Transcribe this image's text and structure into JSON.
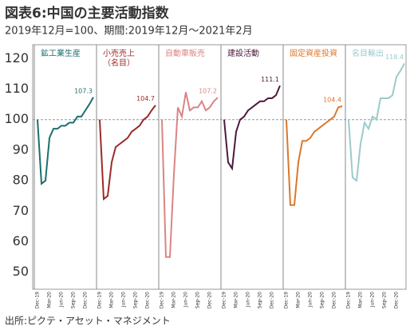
{
  "chart_data": {
    "type": "line",
    "title": "図表6:中国の主要活動指数",
    "subtitle": "2019年12月=100、期間:2019年12月～2021年2月",
    "source": "出所:ピクテ・アセット・マネジメント",
    "x": [
      "Dec-19",
      null,
      null,
      "Mar-20",
      null,
      null,
      "Jun-20",
      null,
      null,
      "Sep-20",
      null,
      null,
      "Dec-20",
      null,
      null
    ],
    "ylim": [
      46,
      124
    ],
    "yticks": [
      50,
      60,
      70,
      80,
      90,
      100,
      110,
      120
    ],
    "reference_line": 100,
    "series": [
      {
        "name": "鉱工業生産",
        "color": "#1d6e6e",
        "values": [
          100,
          79,
          80,
          94,
          97,
          97,
          98,
          98,
          99,
          99,
          101,
          101,
          103,
          105,
          107.3
        ]
      },
      {
        "name": "小売売上（名目）",
        "color": "#9b2a2a",
        "values": [
          100,
          74,
          75,
          86,
          91,
          92,
          93,
          94,
          96,
          97,
          98,
          100,
          101,
          103,
          104.7
        ]
      },
      {
        "name": "自動車販売",
        "color": "#d98585",
        "values": [
          100,
          55,
          55,
          82,
          104,
          101,
          109,
          103,
          104,
          104,
          106,
          103,
          104,
          106,
          107.2
        ]
      },
      {
        "name": "建設活動",
        "color": "#4a1a3c",
        "values": [
          100,
          86,
          84,
          96,
          100,
          101,
          103,
          104,
          105,
          106,
          106,
          107,
          107,
          108,
          111.1
        ]
      },
      {
        "name": "固定資産投資",
        "color": "#d9782d",
        "values": [
          100,
          72,
          72,
          86,
          93,
          93,
          94,
          96,
          97,
          98,
          99,
          100,
          101,
          104,
          104.4
        ]
      },
      {
        "name": "名目輸出",
        "color": "#9ccaca",
        "values": [
          100,
          81,
          80,
          92,
          99,
          97,
          101,
          100,
          107,
          107,
          107,
          108,
          114,
          116,
          118.4
        ]
      }
    ]
  }
}
